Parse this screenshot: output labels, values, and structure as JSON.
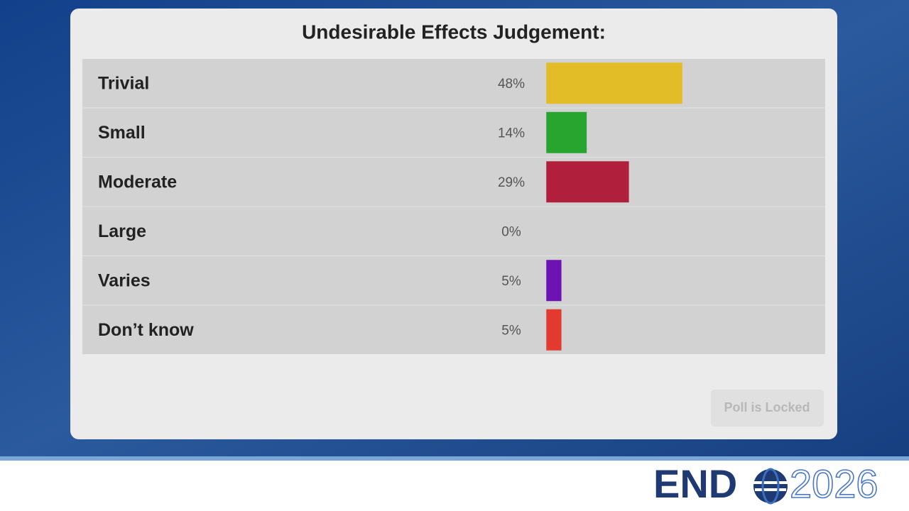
{
  "chart_data": {
    "type": "bar",
    "orientation": "horizontal",
    "title": "Undesirable Effects Judgement:",
    "categories": [
      "Trivial",
      "Small",
      "Moderate",
      "Large",
      "Varies",
      "Don’t know"
    ],
    "values": [
      48,
      14,
      29,
      0,
      5,
      5
    ],
    "value_labels": [
      "48%",
      "14%",
      "29%",
      "0%",
      "5%",
      "5%"
    ],
    "colors": [
      "#e3bd28",
      "#27a52f",
      "#b01f3b",
      "#4a1fb0",
      "#6b13b3",
      "#e23a2e"
    ]
  },
  "button": "Poll is Locked",
  "logo": {
    "left": "END",
    "right": "2026"
  }
}
